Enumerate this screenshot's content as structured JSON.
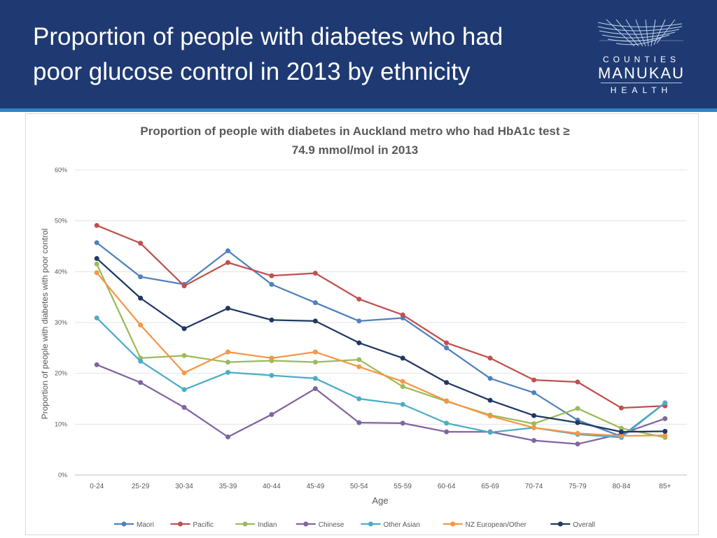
{
  "slide": {
    "title_line1": "Proportion of people with diabetes who had",
    "title_line2": "poor glucose control in 2013 by ethnicity"
  },
  "logo": {
    "top": "COUNTIES",
    "middle": "MANUKAU",
    "bottom": "HEALTH"
  },
  "colors": {
    "header_bg": "#1f3a73",
    "header_rule": "#2f83c7"
  },
  "chart_data": {
    "type": "line",
    "title_line1": "Proportion of people with diabetes in Auckland metro who had HbA1c test ≥",
    "title_line2": "74.9 mmol/mol in 2013",
    "xlabel": "Age",
    "ylabel": "Proportion of people with diabetes with poor control",
    "ylim": [
      0,
      60
    ],
    "yticks": [
      "0%",
      "10%",
      "20%",
      "30%",
      "40%",
      "50%",
      "60%"
    ],
    "grid": true,
    "legend_position": "bottom",
    "categories": [
      "0-24",
      "25-29",
      "30-34",
      "35-39",
      "40-44",
      "45-49",
      "50-54",
      "55-59",
      "60-64",
      "65-69",
      "70-74",
      "75-79",
      "80-84",
      "85+"
    ],
    "series": [
      {
        "name": "Maori",
        "color": "#4f81bd",
        "values": [
          45.7,
          39.0,
          37.5,
          44.1,
          37.5,
          33.9,
          30.3,
          30.9,
          25.0,
          19.0,
          16.2,
          10.8,
          7.6,
          14.2
        ]
      },
      {
        "name": "Pacific",
        "color": "#c0504d",
        "values": [
          49.1,
          45.6,
          37.2,
          41.8,
          39.2,
          39.7,
          34.6,
          31.5,
          26.0,
          23.0,
          18.7,
          18.3,
          13.2,
          13.6
        ]
      },
      {
        "name": "Indian",
        "color": "#9bbb59",
        "values": [
          41.5,
          23.0,
          23.5,
          22.2,
          22.5,
          22.2,
          22.7,
          17.4,
          14.5,
          11.8,
          10.1,
          13.1,
          9.2,
          7.4
        ]
      },
      {
        "name": "Chinese",
        "color": "#8064a2",
        "values": [
          21.7,
          18.2,
          13.3,
          7.5,
          11.9,
          17.0,
          10.3,
          10.2,
          8.5,
          8.5,
          6.8,
          6.1,
          8.1,
          11.1
        ]
      },
      {
        "name": "Other Asian",
        "color": "#4bacc6",
        "values": [
          30.9,
          22.4,
          16.8,
          20.2,
          19.6,
          19.0,
          15.0,
          13.9,
          10.2,
          8.4,
          9.3,
          8.0,
          7.4,
          14.2
        ]
      },
      {
        "name": "NZ European/Other",
        "color": "#f79646",
        "values": [
          39.8,
          29.5,
          20.1,
          24.2,
          23.0,
          24.2,
          21.3,
          18.4,
          14.6,
          11.6,
          9.3,
          8.2,
          7.7,
          7.8
        ]
      },
      {
        "name": "Overall",
        "color": "#1f3864",
        "values": [
          42.6,
          34.8,
          28.8,
          32.8,
          30.5,
          30.3,
          26.0,
          23.0,
          18.2,
          14.7,
          11.7,
          10.3,
          8.5,
          8.6
        ]
      }
    ]
  }
}
